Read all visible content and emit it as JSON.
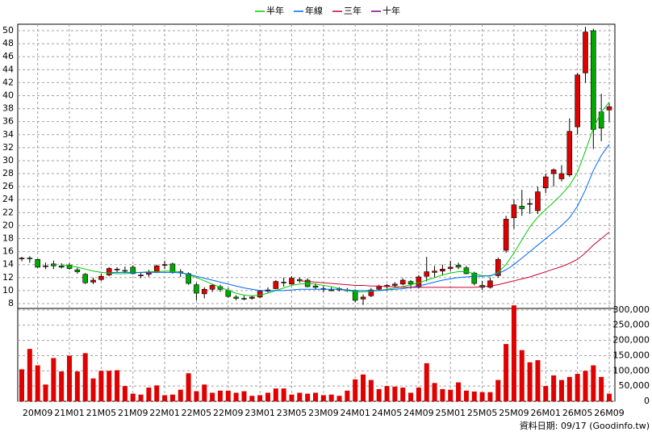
{
  "chart_data": {
    "type": "candlestick",
    "footnote": "資料日期: 09/17  (Goodinfo.tw)",
    "categories": [
      null,
      null,
      "20M09",
      null,
      null,
      null,
      "21M01",
      null,
      null,
      null,
      "21M05",
      null,
      null,
      null,
      "21M09",
      null,
      null,
      null,
      "22M01",
      null,
      null,
      null,
      "22M05",
      null,
      null,
      null,
      "22M09",
      null,
      null,
      null,
      "23M01",
      null,
      null,
      null,
      "23M05",
      null,
      null,
      null,
      "23M09",
      null,
      null,
      null,
      "24M01",
      null,
      null,
      null,
      "24M05",
      null,
      null,
      null,
      "24M09",
      null,
      null,
      null,
      "25M01",
      null,
      null,
      null,
      "25M05",
      null,
      null,
      null,
      "25M09",
      null,
      null,
      null,
      "26M01",
      null,
      null,
      null,
      "26M05",
      null,
      null,
      null,
      "26M09"
    ],
    "open": [
      15,
      15,
      14.8,
      13.8,
      14.1,
      13.8,
      13.9,
      13.2,
      12.5,
      11.3,
      11.7,
      12.4,
      13.2,
      13.1,
      13.6,
      12.3,
      12.5,
      12.9,
      13.9,
      14.1,
      12.8,
      12.6,
      10.9,
      9.5,
      10.2,
      10.6,
      10.0,
      9.0,
      8.8,
      8.8,
      9.0,
      9.9,
      10.3,
      11.3,
      11.0,
      11.7,
      11.6,
      10.7,
      10.3,
      10.1,
      10.1,
      10.1,
      10.0,
      8.7,
      9.2,
      10.2,
      10.6,
      10.8,
      11.0,
      11.4,
      10.6,
      12.2,
      12.8,
      13.0,
      13.4,
      13.9,
      13.5,
      12.7,
      10.8,
      10.5,
      12.3,
      16.2,
      21.2,
      23.0,
      23.3,
      22.3,
      25.8,
      28.0,
      27.2,
      27.8,
      35.2,
      43.5,
      50.0,
      37.5,
      37.8
    ],
    "high": [
      15.2,
      15.3,
      14.9,
      14.3,
      14.6,
      14.2,
      14.2,
      13.5,
      12.7,
      12.0,
      12.6,
      13.6,
      13.6,
      13.7,
      13.9,
      12.8,
      13.2,
      14.0,
      14.6,
      14.3,
      13.3,
      12.8,
      11.2,
      10.5,
      11.0,
      10.9,
      10.4,
      9.3,
      9.2,
      9.2,
      10.1,
      10.5,
      11.6,
      12.0,
      12.2,
      12.0,
      11.9,
      11.1,
      10.7,
      10.5,
      10.5,
      10.4,
      10.2,
      9.4,
      10.4,
      10.9,
      11.0,
      11.3,
      11.9,
      11.6,
      12.4,
      15.2,
      13.8,
      14.0,
      14.6,
      14.3,
      13.8,
      12.9,
      11.5,
      12.0,
      15.1,
      21.5,
      24.0,
      25.5,
      24.2,
      26.0,
      28.0,
      28.8,
      29.3,
      36.5,
      43.5,
      50.6,
      50.3,
      40.3,
      38.8
    ],
    "low": [
      14.5,
      14.3,
      13.5,
      13.3,
      13.3,
      13.4,
      13.2,
      12.6,
      11.0,
      11.0,
      11.5,
      12.2,
      12.8,
      12.7,
      12.5,
      11.9,
      12.1,
      12.7,
      13.3,
      12.6,
      12.1,
      10.9,
      8.5,
      8.8,
      9.8,
      9.8,
      8.9,
      8.5,
      8.5,
      8.6,
      8.8,
      9.7,
      10.2,
      10.6,
      10.9,
      11.2,
      10.5,
      10.2,
      9.8,
      9.9,
      9.9,
      9.8,
      8.2,
      7.8,
      9.0,
      10.0,
      10.3,
      10.5,
      10.8,
      10.3,
      10.3,
      11.4,
      12.0,
      12.3,
      13.0,
      13.3,
      12.5,
      10.8,
      10.1,
      10.3,
      12.0,
      15.8,
      19.5,
      21.5,
      21.8,
      21.8,
      25.0,
      26.0,
      26.8,
      27.5,
      34.0,
      42.0,
      31.8,
      33.0,
      36.0
    ],
    "close": [
      15,
      14.9,
      13.6,
      13.8,
      13.8,
      13.6,
      13.4,
      12.9,
      11.2,
      11.6,
      12.2,
      13.4,
      13.3,
      13.0,
      12.6,
      12.4,
      12.8,
      13.8,
      14.0,
      12.8,
      12.9,
      11.1,
      9.6,
      10.2,
      10.8,
      10.2,
      9.1,
      8.8,
      8.7,
      9.0,
      9.9,
      10.1,
      11.4,
      11.2,
      11.9,
      11.5,
      10.6,
      10.5,
      10.2,
      10.0,
      10.3,
      10.0,
      8.5,
      9.0,
      10.1,
      10.6,
      10.8,
      11.0,
      11.6,
      11.0,
      12.1,
      12.9,
      13.0,
      13.3,
      13.6,
      13.6,
      12.6,
      11.1,
      10.5,
      11.5,
      14.8,
      21.0,
      23.2,
      22.6,
      23.4,
      25.2,
      27.5,
      28.6,
      28.0,
      34.5,
      43.2,
      49.8,
      34.8,
      35.0,
      38.3
    ],
    "up_color": "#e00000",
    "down_color": "#00a800",
    "volume": {
      "color": "#e00000",
      "values": [
        105000,
        172000,
        118000,
        55000,
        142000,
        98000,
        150000,
        98000,
        158000,
        75000,
        100000,
        100000,
        102000,
        50000,
        25000,
        22000,
        45000,
        52000,
        20000,
        22000,
        38000,
        92000,
        33000,
        55000,
        28000,
        35000,
        35000,
        28000,
        33000,
        18000,
        20000,
        28000,
        42000,
        42000,
        22000,
        28000,
        25000,
        28000,
        20000,
        22000,
        18000,
        35000,
        72000,
        88000,
        70000,
        40000,
        50000,
        48000,
        45000,
        28000,
        45000,
        125000,
        60000,
        40000,
        38000,
        62000,
        35000,
        32000,
        30000,
        30000,
        70000,
        188000,
        315000,
        168000,
        128000,
        135000,
        50000,
        85000,
        70000,
        80000,
        90000,
        100000,
        118000,
        80000,
        25000
      ]
    },
    "series": [
      {
        "name": "半年",
        "color": "#00cc00",
        "values": [
          null,
          null,
          null,
          null,
          null,
          14.0,
          13.8,
          13.6,
          13.3,
          13.0,
          12.8,
          12.7,
          12.6,
          12.6,
          12.7,
          12.8,
          12.9,
          12.9,
          13.0,
          13.0,
          12.8,
          12.5,
          12.0,
          11.5,
          11.0,
          10.5,
          10.0,
          9.6,
          9.3,
          9.2,
          9.3,
          9.6,
          10.0,
          10.4,
          10.8,
          11.0,
          11.1,
          11.0,
          10.8,
          10.6,
          10.3,
          10.0,
          9.8,
          9.8,
          9.9,
          10.0,
          10.2,
          10.4,
          10.6,
          10.9,
          11.2,
          11.6,
          12.0,
          12.4,
          12.7,
          12.9,
          12.9,
          12.6,
          12.3,
          12.2,
          12.8,
          14.0,
          15.8,
          17.8,
          19.8,
          21.3,
          22.5,
          23.6,
          24.8,
          26.2,
          28.2,
          31.5,
          35.0,
          37.5,
          39.0
        ]
      },
      {
        "name": "年線",
        "color": "#0066ff",
        "values": [
          null,
          null,
          null,
          null,
          null,
          null,
          null,
          null,
          null,
          null,
          null,
          12.8,
          12.8,
          12.8,
          12.8,
          12.8,
          12.8,
          12.8,
          12.8,
          12.8,
          12.7,
          12.5,
          12.2,
          11.9,
          11.6,
          11.3,
          11.0,
          10.7,
          10.4,
          10.2,
          10.0,
          10.0,
          10.0,
          10.0,
          10.1,
          10.2,
          10.2,
          10.2,
          10.2,
          10.2,
          10.2,
          10.1,
          10.0,
          10.0,
          10.0,
          10.0,
          10.1,
          10.2,
          10.3,
          10.5,
          10.7,
          11.0,
          11.3,
          11.6,
          11.8,
          12.0,
          12.1,
          12.2,
          12.2,
          12.3,
          12.6,
          13.2,
          14.0,
          15.0,
          16.0,
          17.0,
          18.0,
          19.0,
          20.0,
          21.2,
          23.0,
          25.5,
          28.5,
          30.8,
          32.5
        ]
      },
      {
        "name": "三年",
        "color": "#cc0033",
        "values": [
          null,
          null,
          null,
          null,
          null,
          null,
          null,
          null,
          null,
          null,
          null,
          null,
          null,
          null,
          null,
          null,
          null,
          null,
          null,
          null,
          null,
          null,
          null,
          null,
          null,
          null,
          null,
          null,
          null,
          null,
          null,
          null,
          null,
          null,
          null,
          11.5,
          11.4,
          11.3,
          11.2,
          11.1,
          11.0,
          10.9,
          10.8,
          10.8,
          10.7,
          10.7,
          10.6,
          10.6,
          10.5,
          10.5,
          10.5,
          10.5,
          10.5,
          10.5,
          10.5,
          10.5,
          10.5,
          10.5,
          10.6,
          10.7,
          10.9,
          11.2,
          11.5,
          11.8,
          12.1,
          12.5,
          12.9,
          13.3,
          13.7,
          14.2,
          14.8,
          15.8,
          17.0,
          18.0,
          19.0
        ]
      },
      {
        "name": "十年",
        "color": "#800080",
        "values": [
          null,
          null,
          null,
          null,
          null,
          null,
          null,
          null,
          null,
          null,
          null,
          null,
          null,
          null,
          null,
          null,
          null,
          null,
          null,
          null,
          null,
          null,
          null,
          null,
          null,
          null,
          null,
          null,
          null,
          null,
          null,
          null,
          null,
          null,
          null,
          null,
          null,
          null,
          null,
          null,
          null,
          null,
          null,
          null,
          null,
          null,
          null,
          null,
          null,
          null,
          null,
          null,
          null,
          null,
          null,
          null,
          null,
          null,
          null,
          null,
          null,
          null,
          null,
          null,
          null,
          null,
          null,
          null,
          null,
          null,
          null,
          null,
          null,
          null,
          null
        ]
      }
    ],
    "ylim": [
      7.25,
      51
    ],
    "yticks": [
      8,
      10,
      12,
      14,
      16,
      18,
      20,
      22,
      24,
      26,
      28,
      30,
      32,
      34,
      36,
      38,
      40,
      42,
      44,
      46,
      48,
      50
    ],
    "y2lim": [
      0,
      305000
    ],
    "y2ticks": [
      0,
      {
        "value": 50000,
        "label": "50,000"
      },
      {
        "value": 100000,
        "label": "100,000"
      },
      {
        "value": 150000,
        "label": "150,000"
      },
      {
        "value": 200000,
        "label": "200,000"
      },
      {
        "value": 250000,
        "label": "250,000"
      },
      {
        "value": 300000,
        "label": "300,000"
      }
    ],
    "grid": true
  }
}
